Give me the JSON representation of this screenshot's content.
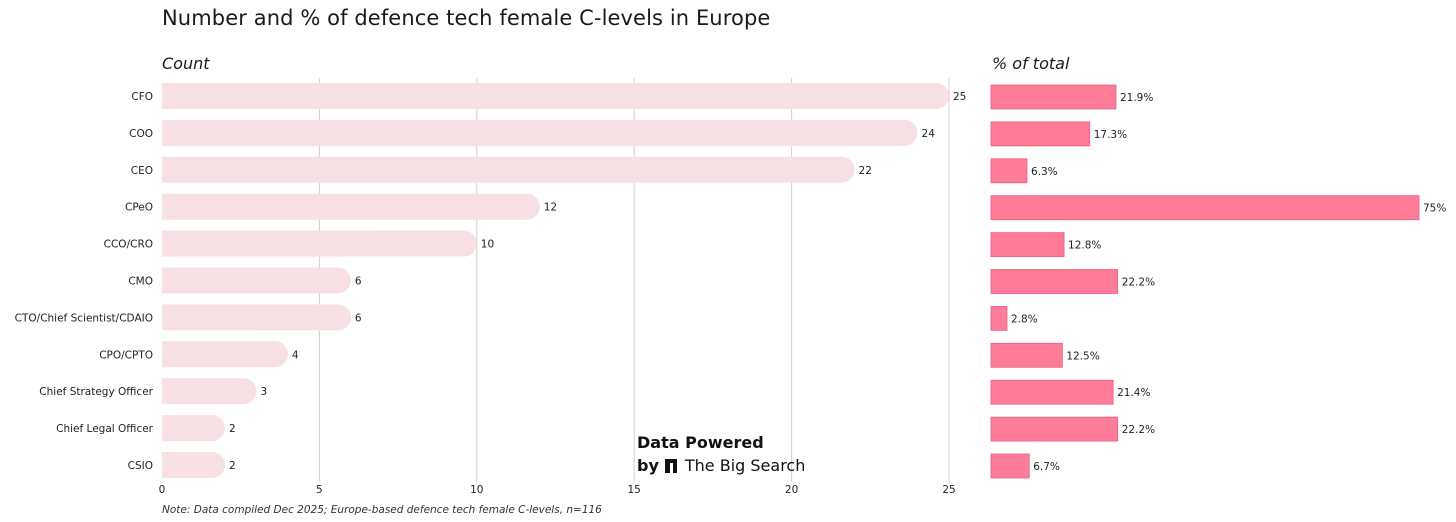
{
  "title": "Number and % of defence tech female C-levels in Europe",
  "note": "Note: Data compiled Dec 2025; Europe-based defence tech female C-levels, n=116",
  "watermark": {
    "line1": "Data Powered",
    "by": "by",
    "brand": "The Big Search"
  },
  "colors": {
    "count_bar": "#f7e0e4",
    "pct_bar": "#ff7c98",
    "pct_border": "#e8607e",
    "grid": "#d0d0d0"
  },
  "chart_data": [
    {
      "type": "bar",
      "orientation": "horizontal",
      "title": "Count",
      "categories": [
        "CFO",
        "COO",
        "CEO",
        "CPeO",
        "CCO/CRO",
        "CMO",
        "CTO/Chief Scientist/CDAIO",
        "CPO/CPTO",
        "Chief Strategy Officer",
        "Chief Legal Officer",
        "CSIO"
      ],
      "values": [
        25,
        24,
        22,
        12,
        10,
        6,
        6,
        4,
        3,
        2,
        2
      ],
      "value_labels": [
        "25",
        "24",
        "22",
        "12",
        "10",
        "6",
        "6",
        "4",
        "3",
        "2",
        "2"
      ],
      "xlim": [
        0,
        25
      ],
      "ticks": [
        0,
        5,
        10,
        15,
        20,
        25
      ],
      "tick_labels": [
        "0",
        "5",
        "10",
        "15",
        "20",
        "25"
      ],
      "grid": true
    },
    {
      "type": "bar",
      "orientation": "horizontal",
      "title": "% of total",
      "categories": [
        "CFO",
        "COO",
        "CEO",
        "CPeO",
        "CCO/CRO",
        "CMO",
        "CTO/Chief Scientist/CDAIO",
        "CPO/CPTO",
        "Chief Strategy Officer",
        "Chief Legal Officer",
        "CSIO"
      ],
      "values": [
        21.9,
        17.3,
        6.3,
        75,
        12.8,
        22.2,
        2.8,
        12.5,
        21.4,
        22.2,
        6.7
      ],
      "value_labels": [
        "21.9%",
        "17.3%",
        "6.3%",
        "75%",
        "12.8%",
        "22.2%",
        "2.8%",
        "12.5%",
        "21.4%",
        "22.2%",
        "6.7%"
      ],
      "xlim": [
        0,
        75
      ]
    }
  ]
}
